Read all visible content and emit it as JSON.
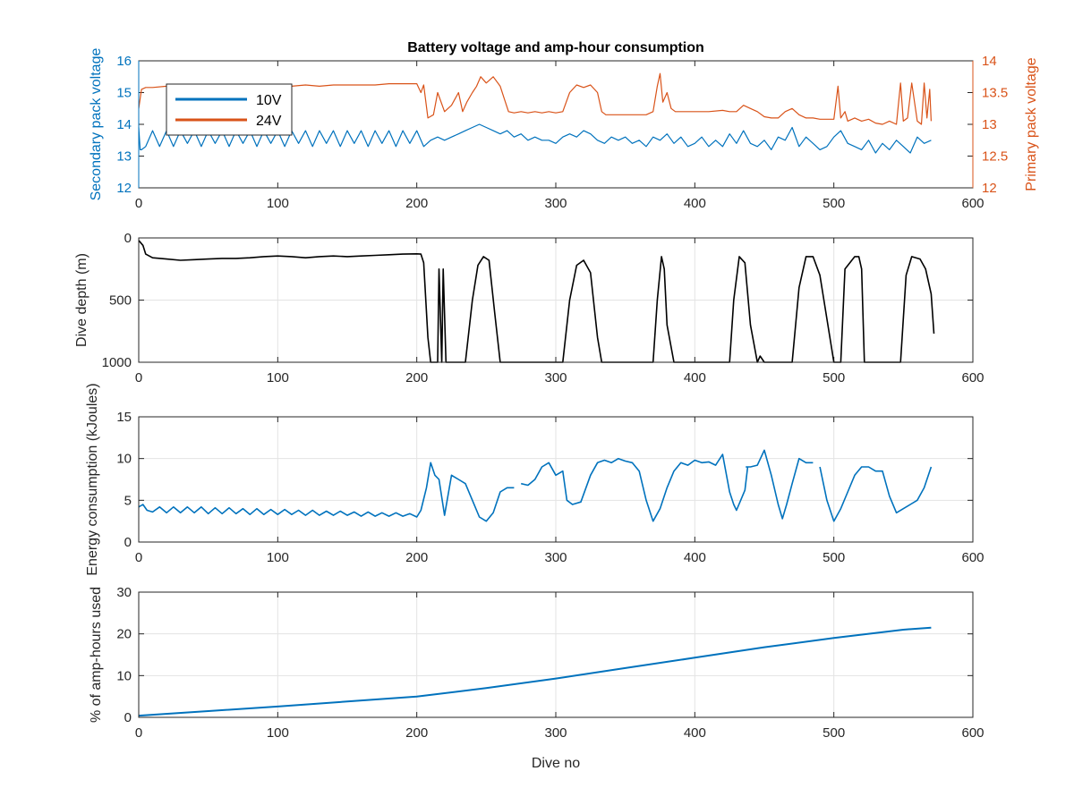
{
  "figure": {
    "title": "Battery voltage and amp-hour consumption",
    "xlabel": "Dive no"
  },
  "colors": {
    "blue": "#0072BD",
    "orange": "#D95319",
    "black": "#000000",
    "axis": "#262626",
    "grid": "#e3e3e3"
  },
  "chart_data": [
    {
      "type": "line",
      "name": "voltage",
      "xlim": [
        0,
        600
      ],
      "xticks": [
        "0",
        "100",
        "200",
        "300",
        "400",
        "500",
        "600"
      ],
      "ylabel_left": "Secondary pack voltage",
      "ylim_left": [
        12,
        16
      ],
      "yticks_left": [
        "12",
        "13",
        "14",
        "15",
        "16"
      ],
      "ylabel_right": "Primary pack voltage",
      "ylim_right": [
        12,
        14
      ],
      "yticks_right": [
        "12",
        "12.5",
        "13",
        "13.5",
        "14"
      ],
      "legend": {
        "position": "top-left",
        "entries": [
          "10V",
          "24V"
        ]
      },
      "grid": false,
      "series": [
        {
          "name": "10V",
          "axis": "left",
          "x": [
            0,
            1,
            2,
            5,
            10,
            15,
            20,
            25,
            30,
            35,
            40,
            45,
            50,
            55,
            60,
            65,
            70,
            75,
            80,
            85,
            90,
            95,
            100,
            105,
            110,
            115,
            120,
            125,
            130,
            135,
            140,
            145,
            150,
            155,
            160,
            165,
            170,
            175,
            180,
            185,
            190,
            195,
            200,
            205,
            210,
            215,
            220,
            225,
            230,
            235,
            240,
            245,
            250,
            255,
            260,
            265,
            270,
            275,
            280,
            285,
            290,
            295,
            300,
            305,
            310,
            315,
            320,
            325,
            330,
            335,
            340,
            345,
            350,
            355,
            360,
            365,
            370,
            375,
            380,
            385,
            390,
            395,
            400,
            405,
            410,
            415,
            420,
            425,
            430,
            435,
            440,
            445,
            450,
            455,
            460,
            465,
            470,
            475,
            480,
            485,
            490,
            495,
            500,
            505,
            510,
            515,
            520,
            525,
            530,
            535,
            540,
            545,
            550,
            555,
            560,
            565,
            570
          ],
          "values": [
            13.9,
            13.2,
            13.2,
            13.3,
            13.8,
            13.3,
            13.8,
            13.3,
            13.8,
            13.4,
            13.8,
            13.3,
            13.8,
            13.4,
            13.8,
            13.3,
            13.8,
            13.4,
            13.8,
            13.3,
            13.8,
            13.4,
            13.8,
            13.3,
            13.8,
            13.4,
            13.8,
            13.3,
            13.8,
            13.4,
            13.8,
            13.3,
            13.8,
            13.4,
            13.8,
            13.3,
            13.8,
            13.4,
            13.8,
            13.3,
            13.8,
            13.4,
            13.8,
            13.3,
            13.5,
            13.6,
            13.5,
            13.6,
            13.7,
            13.8,
            13.9,
            14.0,
            13.9,
            13.8,
            13.7,
            13.8,
            13.6,
            13.7,
            13.5,
            13.6,
            13.5,
            13.5,
            13.4,
            13.6,
            13.7,
            13.6,
            13.8,
            13.7,
            13.5,
            13.4,
            13.6,
            13.5,
            13.6,
            13.4,
            13.5,
            13.3,
            13.6,
            13.5,
            13.7,
            13.4,
            13.6,
            13.3,
            13.4,
            13.6,
            13.3,
            13.5,
            13.3,
            13.7,
            13.4,
            13.8,
            13.4,
            13.3,
            13.5,
            13.2,
            13.6,
            13.5,
            13.9,
            13.3,
            13.6,
            13.4,
            13.2,
            13.3,
            13.6,
            13.8,
            13.4,
            13.3,
            13.2,
            13.5,
            13.1,
            13.4,
            13.2,
            13.5,
            13.3,
            13.1,
            13.6,
            13.4,
            13.5
          ]
        },
        {
          "name": "24V",
          "axis": "right",
          "x": [
            0,
            2,
            5,
            10,
            20,
            30,
            40,
            50,
            60,
            70,
            80,
            90,
            100,
            110,
            120,
            130,
            140,
            150,
            160,
            170,
            180,
            190,
            200,
            203,
            205,
            208,
            212,
            215,
            220,
            225,
            230,
            233,
            236,
            240,
            243,
            246,
            250,
            255,
            260,
            263,
            266,
            270,
            275,
            280,
            285,
            290,
            295,
            300,
            305,
            310,
            315,
            320,
            325,
            330,
            333,
            336,
            340,
            345,
            350,
            355,
            360,
            365,
            370,
            373,
            375,
            377,
            380,
            383,
            386,
            390,
            400,
            410,
            420,
            425,
            430,
            435,
            440,
            445,
            450,
            455,
            460,
            465,
            470,
            475,
            480,
            485,
            490,
            495,
            500,
            503,
            505,
            508,
            510,
            515,
            520,
            525,
            530,
            535,
            540,
            545,
            548,
            550,
            553,
            556,
            560,
            563,
            565,
            567,
            569,
            570
          ],
          "values": [
            13.25,
            13.55,
            13.58,
            13.58,
            13.6,
            13.6,
            13.62,
            13.6,
            13.62,
            13.6,
            13.62,
            13.6,
            13.62,
            13.6,
            13.62,
            13.6,
            13.62,
            13.62,
            13.62,
            13.62,
            13.64,
            13.64,
            13.64,
            13.5,
            13.62,
            13.1,
            13.15,
            13.5,
            13.2,
            13.3,
            13.5,
            13.2,
            13.35,
            13.5,
            13.6,
            13.75,
            13.65,
            13.75,
            13.6,
            13.4,
            13.2,
            13.18,
            13.2,
            13.18,
            13.2,
            13.18,
            13.2,
            13.18,
            13.2,
            13.5,
            13.62,
            13.58,
            13.62,
            13.5,
            13.2,
            13.15,
            13.15,
            13.15,
            13.15,
            13.15,
            13.15,
            13.15,
            13.2,
            13.6,
            13.8,
            13.35,
            13.5,
            13.25,
            13.2,
            13.2,
            13.2,
            13.2,
            13.22,
            13.2,
            13.2,
            13.3,
            13.25,
            13.2,
            13.12,
            13.1,
            13.1,
            13.2,
            13.25,
            13.15,
            13.1,
            13.1,
            13.08,
            13.08,
            13.08,
            13.6,
            13.1,
            13.2,
            13.05,
            13.1,
            13.05,
            13.08,
            13.02,
            13.0,
            13.05,
            13.0,
            13.65,
            13.05,
            13.1,
            13.65,
            13.05,
            13.0,
            13.65,
            13.1,
            13.55,
            13.05
          ]
        }
      ]
    },
    {
      "type": "line",
      "name": "depth",
      "xlim": [
        0,
        600
      ],
      "xticks": [
        "0",
        "100",
        "200",
        "300",
        "400",
        "500",
        "600"
      ],
      "ylabel": "Dive depth (m)",
      "ylim": [
        1000,
        0
      ],
      "yticks": [
        "0",
        "500",
        "1000"
      ],
      "grid": true,
      "series": [
        {
          "name": "",
          "x": [
            0,
            3,
            5,
            10,
            20,
            30,
            40,
            50,
            60,
            70,
            80,
            90,
            100,
            110,
            120,
            130,
            140,
            150,
            160,
            170,
            180,
            190,
            200,
            203,
            205,
            208,
            210,
            212,
            215,
            216,
            218,
            219,
            221,
            223,
            225,
            235,
            240,
            244,
            248,
            252,
            256,
            260,
            263,
            300,
            305,
            310,
            315,
            320,
            325,
            330,
            333,
            337,
            350,
            365,
            370,
            373,
            376,
            378,
            380,
            385,
            420,
            425,
            428,
            432,
            436,
            440,
            445,
            447,
            450,
            465,
            470,
            475,
            480,
            485,
            490,
            500,
            505,
            508,
            515,
            518,
            520,
            522,
            545,
            548,
            552,
            556,
            562,
            566,
            570,
            572
          ],
          "values": [
            20,
            60,
            130,
            160,
            170,
            180,
            175,
            170,
            165,
            165,
            160,
            150,
            145,
            150,
            160,
            150,
            145,
            150,
            145,
            140,
            135,
            130,
            128,
            130,
            200,
            800,
            1000,
            1000,
            1000,
            250,
            1000,
            250,
            1000,
            1000,
            1000,
            1000,
            500,
            220,
            150,
            180,
            600,
            1000,
            1000,
            1000,
            1000,
            500,
            220,
            180,
            280,
            800,
            1000,
            1000,
            1000,
            1000,
            1000,
            500,
            150,
            250,
            700,
            1000,
            1000,
            1000,
            500,
            150,
            200,
            700,
            1000,
            950,
            1000,
            1000,
            1000,
            400,
            150,
            150,
            300,
            1000,
            1000,
            250,
            150,
            150,
            250,
            1000,
            1000,
            1000,
            300,
            150,
            170,
            250,
            450,
            770
          ]
        }
      ]
    },
    {
      "type": "line",
      "name": "energy",
      "xlim": [
        0,
        600
      ],
      "xticks": [
        "0",
        "100",
        "200",
        "300",
        "400",
        "500",
        "600"
      ],
      "ylabel": "Energy consumption (kJoules)",
      "ylim": [
        0,
        15
      ],
      "yticks": [
        "0",
        "5",
        "10",
        "15"
      ],
      "grid": true,
      "series": [
        {
          "name": "",
          "gap_after_index": [
            57,
            105
          ],
          "x": [
            0,
            3,
            6,
            10,
            15,
            20,
            25,
            30,
            35,
            40,
            45,
            50,
            55,
            60,
            65,
            70,
            75,
            80,
            85,
            90,
            95,
            100,
            105,
            110,
            115,
            120,
            125,
            130,
            135,
            140,
            145,
            150,
            155,
            160,
            165,
            170,
            175,
            180,
            185,
            190,
            195,
            200,
            203,
            207,
            210,
            213,
            216,
            220,
            225,
            230,
            235,
            240,
            245,
            250,
            255,
            260,
            265,
            270,
            275,
            280,
            285,
            290,
            295,
            300,
            305,
            308,
            312,
            318,
            325,
            330,
            335,
            340,
            345,
            350,
            355,
            360,
            365,
            370,
            375,
            380,
            385,
            390,
            395,
            400,
            405,
            410,
            415,
            420,
            425,
            428,
            430,
            433,
            436,
            438,
            437,
            440,
            445,
            450,
            455,
            460,
            463,
            466,
            470,
            475,
            480,
            485,
            490,
            495,
            500,
            505,
            510,
            515,
            520,
            525,
            530,
            535,
            540,
            545,
            550,
            555,
            560,
            565,
            570
          ],
          "values": [
            4.2,
            4.5,
            3.8,
            3.6,
            4.2,
            3.5,
            4.2,
            3.5,
            4.2,
            3.5,
            4.2,
            3.4,
            4.1,
            3.4,
            4.1,
            3.4,
            4.0,
            3.3,
            4.0,
            3.3,
            3.9,
            3.3,
            3.9,
            3.3,
            3.8,
            3.2,
            3.8,
            3.2,
            3.7,
            3.2,
            3.7,
            3.2,
            3.6,
            3.1,
            3.6,
            3.1,
            3.5,
            3.1,
            3.5,
            3.1,
            3.4,
            3.0,
            3.8,
            6.5,
            9.5,
            8.0,
            7.5,
            3.2,
            8.0,
            7.5,
            7.0,
            5.0,
            3.0,
            2.5,
            3.5,
            6.0,
            6.5,
            6.5,
            7.0,
            6.8,
            7.5,
            9.0,
            9.5,
            8.0,
            8.5,
            5.0,
            4.5,
            4.8,
            8.0,
            9.5,
            9.8,
            9.5,
            10.0,
            9.7,
            9.5,
            8.5,
            5.0,
            2.5,
            4.0,
            6.5,
            8.5,
            9.5,
            9.2,
            9.8,
            9.5,
            9.6,
            9.2,
            10.5,
            6.0,
            4.5,
            3.8,
            5.0,
            6.2,
            9.0,
            9.0,
            9.0,
            9.2,
            11.0,
            8.0,
            4.5,
            2.8,
            4.5,
            7.0,
            10.0,
            9.5,
            9.5,
            9.0,
            5.0,
            2.5,
            4.0,
            6.0,
            8.0,
            9.0,
            9.0,
            8.5,
            8.5,
            5.5,
            3.5,
            4.0,
            4.5,
            5.0,
            6.5,
            9.0
          ]
        }
      ]
    },
    {
      "type": "line",
      "name": "amphours",
      "xlim": [
        0,
        600
      ],
      "xticks": [
        "0",
        "100",
        "200",
        "300",
        "400",
        "500",
        "600"
      ],
      "xlabel": "Dive no",
      "ylabel": "% of amp-hours used",
      "ylim": [
        0,
        30
      ],
      "yticks": [
        "0",
        "10",
        "20",
        "30"
      ],
      "grid": true,
      "series": [
        {
          "name": "",
          "x": [
            0,
            50,
            100,
            150,
            200,
            250,
            300,
            350,
            400,
            450,
            500,
            550,
            570
          ],
          "values": [
            0.4,
            1.5,
            2.6,
            3.8,
            5.0,
            7.0,
            9.3,
            11.8,
            14.3,
            16.8,
            19.0,
            21.0,
            21.5
          ]
        }
      ]
    }
  ]
}
